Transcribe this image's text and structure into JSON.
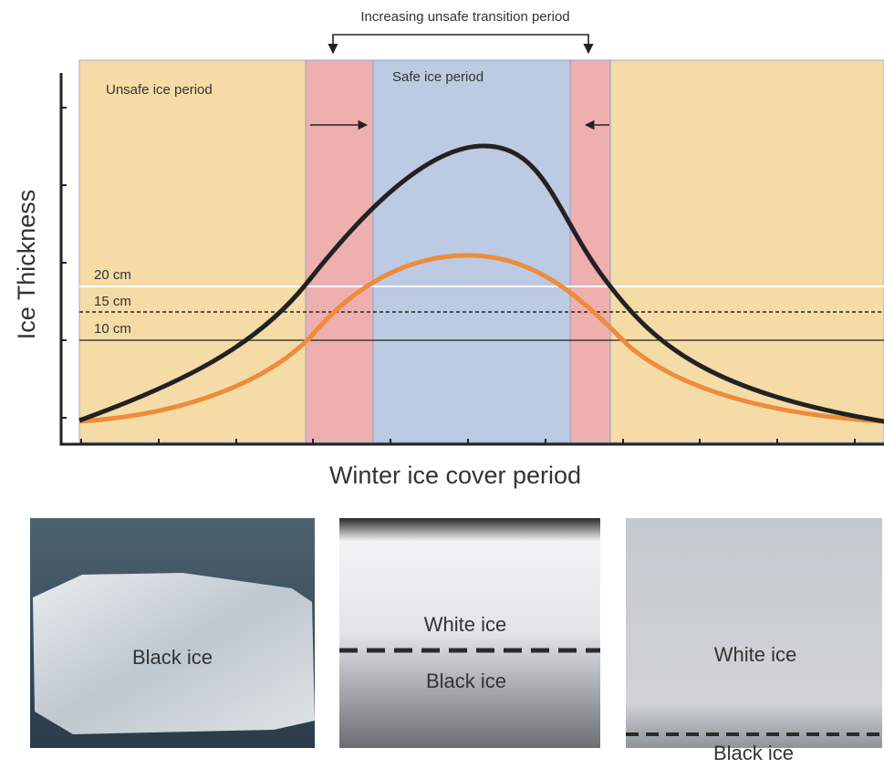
{
  "header": {
    "bracket_label": "Increasing unsafe transition period"
  },
  "plot": {
    "y_axis_label": "Ice Thickness",
    "x_axis_label": "Winter ice cover period",
    "periods": [
      {
        "label": "Unsafe ice period"
      },
      {
        "label": "Safe ice period"
      }
    ],
    "thresholds": [
      {
        "label": "20 cm"
      },
      {
        "label": "15 cm"
      },
      {
        "label": "10 cm"
      }
    ]
  },
  "photos": [
    {
      "labels": [
        "Black ice"
      ]
    },
    {
      "labels": [
        "White ice",
        "Black ice"
      ]
    },
    {
      "labels": [
        "White ice",
        "Black ice"
      ]
    }
  ]
}
